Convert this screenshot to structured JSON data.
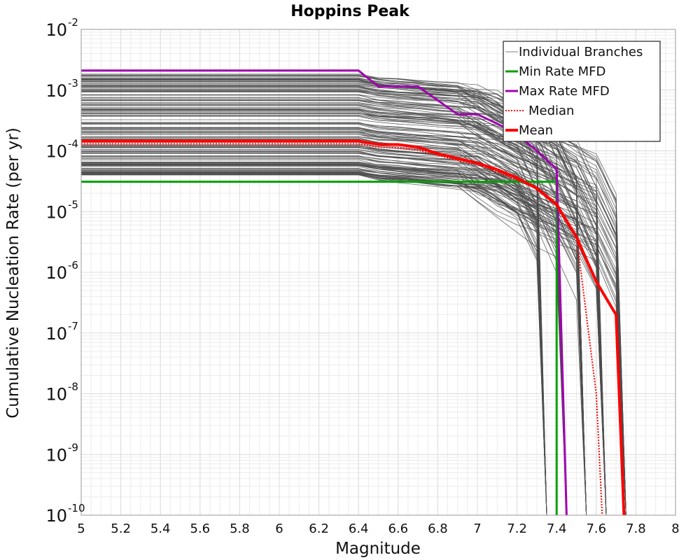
{
  "chart_data": {
    "type": "line",
    "title": "Hoppins Peak",
    "xlabel": "Magnitude",
    "ylabel": "Cumulative Nucleation Rate (per yr)",
    "xlim": [
      5,
      8
    ],
    "ylim_log10": [
      -10,
      -2
    ],
    "y_scale": "log",
    "x_ticks": [
      "5",
      "5.2",
      "5.4",
      "5.6",
      "5.8",
      "6",
      "6.2",
      "6.4",
      "6.6",
      "6.8",
      "7",
      "7.2",
      "7.4",
      "7.6",
      "7.8",
      "8"
    ],
    "x_tick_values": [
      5,
      5.2,
      5.4,
      5.6,
      5.8,
      6,
      6.2,
      6.4,
      6.6,
      6.8,
      7,
      7.2,
      7.4,
      7.6,
      7.8,
      8
    ],
    "y_tick_base": "10",
    "y_tick_exponents": [
      "-10",
      "-9",
      "-8",
      "-7",
      "-6",
      "-5",
      "-4",
      "-3",
      "-2"
    ],
    "y_tick_values": [
      -10,
      -9,
      -8,
      -7,
      -6,
      -5,
      -4,
      -3,
      -2
    ],
    "grid": true,
    "legend_position": "top-right",
    "legend": [
      {
        "label": "Individual Branches",
        "color": "#808080",
        "style": "thin"
      },
      {
        "label": "Min Rate MFD",
        "color": "#00a000",
        "style": "solid"
      },
      {
        "label": "Max Rate MFD",
        "color": "#a000b0",
        "style": "solid"
      },
      {
        "label": "Median",
        "color": "#ff0000",
        "style": "dotted"
      },
      {
        "label": "Mean",
        "color": "#ff0000",
        "style": "thick"
      }
    ],
    "branch_color": "#4d4d4d",
    "branch_range_at_m5": [
      4e-05,
      0.0019
    ],
    "branch_cutoff_magnitudes": [
      7.35,
      7.45,
      7.55,
      7.65,
      7.75
    ],
    "series": [
      {
        "name": "Min Rate MFD",
        "color": "#00a000",
        "x": [
          5,
          7.4,
          7.4
        ],
        "y": [
          3.1e-05,
          3.1e-05,
          1e-10
        ]
      },
      {
        "name": "Max Rate MFD",
        "color": "#a000b0",
        "x": [
          5,
          6.4,
          6.5,
          6.7,
          6.9,
          7.0,
          7.1,
          7.2,
          7.3,
          7.4,
          7.45
        ],
        "y": [
          0.0021,
          0.0021,
          0.00115,
          0.00115,
          0.0004,
          0.0004,
          0.00028,
          0.00019,
          0.0001,
          5e-05,
          1e-10
        ]
      },
      {
        "name": "Median",
        "color": "#ff0000",
        "x": [
          5,
          6.4,
          6.5,
          6.6,
          6.7,
          6.8,
          6.9,
          7.0,
          7.1,
          7.2,
          7.3,
          7.4,
          7.5,
          7.6,
          7.63
        ],
        "y": [
          0.00013,
          0.00013,
          0.000115,
          0.000112,
          0.000103,
          8.5e-05,
          7e-05,
          6e-05,
          4.5e-05,
          3.3e-05,
          2.5e-05,
          1.4e-05,
          4e-06,
          1e-08,
          1e-10
        ]
      },
      {
        "name": "Mean",
        "color": "#ff0000",
        "x": [
          5,
          6.4,
          6.5,
          6.6,
          6.7,
          6.8,
          6.9,
          7.0,
          7.1,
          7.2,
          7.3,
          7.4,
          7.5,
          7.6,
          7.7,
          7.74
        ],
        "y": [
          0.000145,
          0.000145,
          0.000128,
          0.000127,
          0.000115,
          9e-05,
          7.5e-05,
          6.3e-05,
          4.9e-05,
          3.6e-05,
          2.4e-05,
          1.3e-05,
          3.8e-06,
          7e-07,
          2e-07,
          1e-10
        ]
      }
    ]
  }
}
